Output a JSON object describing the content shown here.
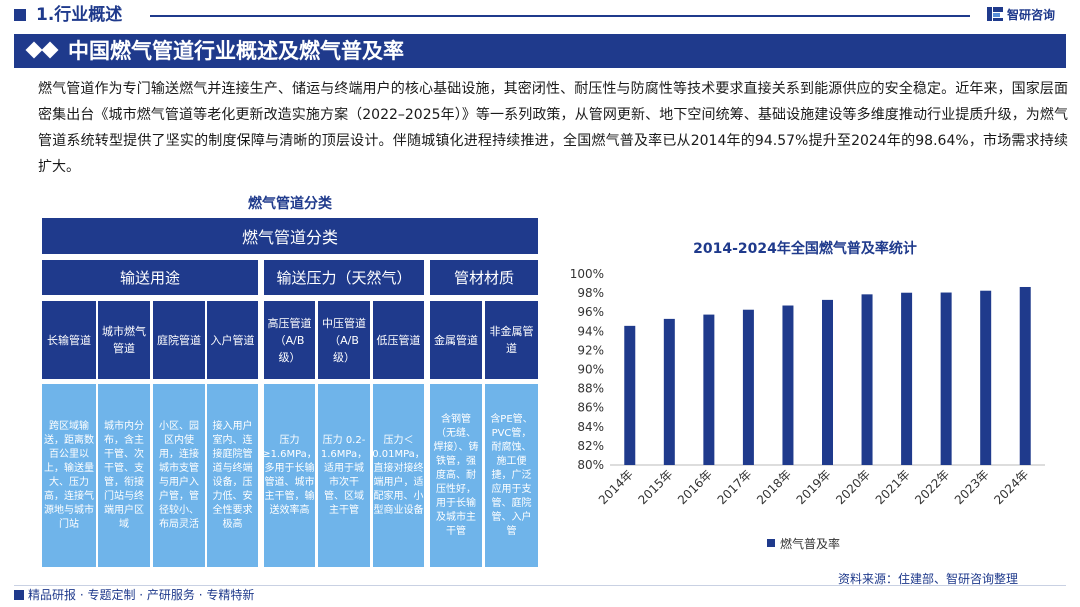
{
  "header": {
    "section_title": "1.行业概述",
    "brand": "智研咨询",
    "banner_title": "中国燃气管道行业概述及燃气普及率"
  },
  "intro": "燃气管道作为专门输送燃气并连接生产、储运与终端用户的核心基础设施，其密闭性、耐压性与防腐性等技术要求直接关系到能源供应的安全稳定。近年来，国家层面密集出台《城市燃气管道等老化更新改造实施方案（2022–2025年）》等一系列政策，从管网更新、地下空间统筹、基础设施建设等多维度推动行业提质升级，为燃气管道系统转型提供了坚实的制度保障与清晰的顶层设计。伴随城镇化进程持续推进，全国燃气普及率已从2014年的94.57%提升至2024年的98.64%，市场需求持续扩大。",
  "diagram": {
    "title": "燃气管道分类",
    "root": "燃气管道分类",
    "groups": [
      "输送用途",
      "输送压力（天然气）",
      "管材材质"
    ],
    "types": [
      {
        "name": "长输管道",
        "desc": "跨区域输送，距离数百公里以上，输送量大、压力高，连接气源地与城市门站"
      },
      {
        "name": "城市燃气管道",
        "desc": "城市内分布，含主干管、次干管、支管，衔接门站与终端用户区域"
      },
      {
        "name": "庭院管道",
        "desc": "小区、园区内使用，连接城市支管与用户入户管，管径较小、布局灵活"
      },
      {
        "name": "入户管道",
        "desc": "接入用户室内、连接庭院管道与终端设备，压力低、安全性要求极高"
      },
      {
        "name": "高压管道（A/B级）",
        "desc": "压力≥1.6MPa，多用于长输管道、城市主干管，输送效率高"
      },
      {
        "name": "中压管道（A/B级）",
        "desc": "压力 0.2-1.6MPa，适用于城市次干管、区域主干管"
      },
      {
        "name": "低压管道",
        "desc": "压力＜0.01MPa，直接对接终端用户，适配家用、小型商业设备"
      },
      {
        "name": "金属管道",
        "desc": "含钢管（无缝、焊接）、铸铁管，强度高、耐压性好，用于长输及城市主干管"
      },
      {
        "name": "非金属管道",
        "desc": "含PE管、PVC管，耐腐蚀、施工便捷，广泛应用于支管、庭院管、入户管"
      }
    ]
  },
  "chart_data": {
    "type": "bar",
    "title": "2014-2024年全国燃气普及率统计",
    "categories": [
      "2014年",
      "2015年",
      "2016年",
      "2017年",
      "2018年",
      "2019年",
      "2020年",
      "2021年",
      "2022年",
      "2023年",
      "2024年"
    ],
    "series": [
      {
        "name": "燃气普及率",
        "values": [
          94.57,
          95.3,
          95.75,
          96.26,
          96.7,
          97.29,
          97.87,
          98.04,
          98.06,
          98.25,
          98.64
        ]
      }
    ],
    "ylim": [
      80,
      100
    ],
    "yticks": [
      "80%",
      "82%",
      "84%",
      "86%",
      "88%",
      "90%",
      "92%",
      "94%",
      "96%",
      "98%",
      "100%"
    ],
    "tick_values": [
      80,
      82,
      84,
      86,
      88,
      90,
      92,
      94,
      96,
      98,
      100
    ],
    "legend_position": "bottom-left",
    "color": "#1f3a8c"
  },
  "footer": {
    "left": "精品研报 · 专题定制 · 产研服务 · 专精特新",
    "source": "资料来源：住建部、智研咨询整理"
  }
}
